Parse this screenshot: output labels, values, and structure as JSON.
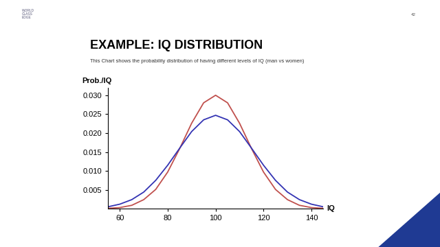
{
  "slide": {
    "logo": "WORLD\nCLASS\nEDGE",
    "page": "42"
  },
  "chart_data": {
    "type": "line",
    "title": "EXAMPLE: IQ DISTRIBUTION",
    "subtitle": "This Chart shows the probability distribution of having different levels of IQ (man vs women)",
    "y_label": "Prob./IQ",
    "x_label": "IQ",
    "x": [
      55,
      60,
      65,
      70,
      75,
      80,
      85,
      90,
      95,
      100,
      105,
      110,
      115,
      120,
      125,
      130,
      135,
      140,
      145
    ],
    "series": [
      {
        "color": "#c0504d",
        "values": [
          0.0001,
          0.0003,
          0.0009,
          0.0024,
          0.0051,
          0.0097,
          0.0159,
          0.0226,
          0.028,
          0.03,
          0.028,
          0.0226,
          0.0159,
          0.0097,
          0.0051,
          0.0024,
          0.0009,
          0.0003,
          0.0001
        ]
      },
      {
        "color": "#3333b3",
        "values": [
          0.0005,
          0.0012,
          0.0024,
          0.0044,
          0.0075,
          0.0115,
          0.016,
          0.0204,
          0.0235,
          0.0247,
          0.0235,
          0.0204,
          0.016,
          0.0115,
          0.0075,
          0.0044,
          0.0024,
          0.0012,
          0.0005
        ]
      }
    ],
    "xlim": [
      55,
      145
    ],
    "ylim": [
      0,
      0.032
    ],
    "xticks": [
      60,
      80,
      100,
      120,
      140
    ],
    "yticks": [
      0.005,
      {
        "value": 0.01,
        "label": "0.010"
      },
      0.015,
      {
        "value": 0.02,
        "label": "0.020"
      },
      0.025,
      {
        "value": 0.03,
        "label": "0.030"
      }
    ],
    "grid": false
  }
}
